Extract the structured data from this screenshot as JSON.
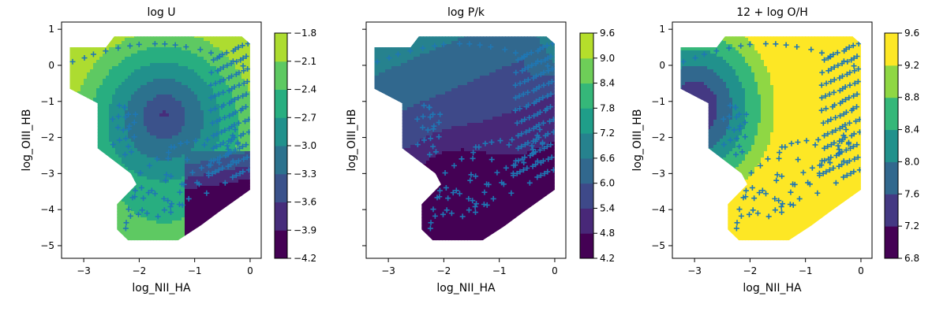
{
  "chart_data": [
    {
      "type": "contour",
      "title": "log U",
      "xlabel": "log_NII_HA",
      "ylabel": "log_OIII_HB",
      "xlim": [
        -3.4,
        0.2
      ],
      "ylim": [
        -5.35,
        1.2
      ],
      "xticks": [
        -3,
        -2,
        -1,
        0
      ],
      "xtick_labels": [
        "−3",
        "−2",
        "−1",
        "0"
      ],
      "yticks": [
        1,
        0,
        -1,
        -2,
        -3,
        -4,
        -5
      ],
      "ytick_labels": [
        "1",
        "0",
        "−1",
        "−2",
        "−3",
        "−4",
        "−5"
      ],
      "show_ytick_labels": true,
      "colorbar": {
        "ticks": [
          "−1.8",
          "−2.1",
          "−2.4",
          "−2.7",
          "−3.0",
          "−3.3",
          "−3.6",
          "−3.9",
          "−4.2"
        ],
        "range": [
          -4.2,
          -1.8
        ],
        "levels": [
          "#440154",
          "#472d7b",
          "#3b528b",
          "#2c728e",
          "#21918c",
          "#28ae80",
          "#5ec962",
          "#addc30"
        ]
      },
      "model": "u"
    },
    {
      "type": "contour",
      "title": "log P/k",
      "xlabel": "log_NII_HA",
      "ylabel": "log_OIII_HB",
      "xlim": [
        -3.4,
        0.2
      ],
      "ylim": [
        -5.35,
        1.2
      ],
      "xticks": [
        -3,
        -2,
        -1,
        0
      ],
      "xtick_labels": [
        "−3",
        "−2",
        "−1",
        "0"
      ],
      "yticks": [
        1,
        0,
        -1,
        -2,
        -3,
        -4,
        -5
      ],
      "ytick_labels": [
        "",
        "",
        "",
        "",
        "",
        "",
        ""
      ],
      "show_ytick_labels": false,
      "colorbar": {
        "ticks": [
          "9.6",
          "9.0",
          "8.4",
          "7.8",
          "7.2",
          "6.6",
          "6.0",
          "5.4",
          "4.8",
          "4.2"
        ],
        "range": [
          4.2,
          9.6
        ],
        "levels": [
          "#440154",
          "#482878",
          "#3e4989",
          "#31688e",
          "#26828e",
          "#1f9e89",
          "#35b779",
          "#6ece58",
          "#b5de2b"
        ]
      },
      "model": "p"
    },
    {
      "type": "contour",
      "title": "12 + log O/H",
      "xlabel": "log_NII_HA",
      "ylabel": "log_OIII_HB",
      "xlim": [
        -3.4,
        0.2
      ],
      "ylim": [
        -5.35,
        1.2
      ],
      "xticks": [
        -3,
        -2,
        -1,
        0
      ],
      "xtick_labels": [
        "−3",
        "−2",
        "−1",
        "0"
      ],
      "yticks": [
        1,
        0,
        -1,
        -2,
        -3,
        -4,
        -5
      ],
      "ytick_labels": [
        "1",
        "0",
        "−1",
        "−2",
        "−3",
        "−4",
        "−5"
      ],
      "show_ytick_labels": true,
      "colorbar": {
        "ticks": [
          "9.6",
          "9.2",
          "8.8",
          "8.4",
          "8.0",
          "7.6",
          "7.2",
          "6.8"
        ],
        "range": [
          6.8,
          9.6
        ],
        "levels": [
          "#440154",
          "#443983",
          "#31688e",
          "#21918c",
          "#35b779",
          "#8fd744",
          "#fde725"
        ]
      },
      "model": "z"
    }
  ],
  "style": {
    "marker_color": "#1f77b4"
  }
}
